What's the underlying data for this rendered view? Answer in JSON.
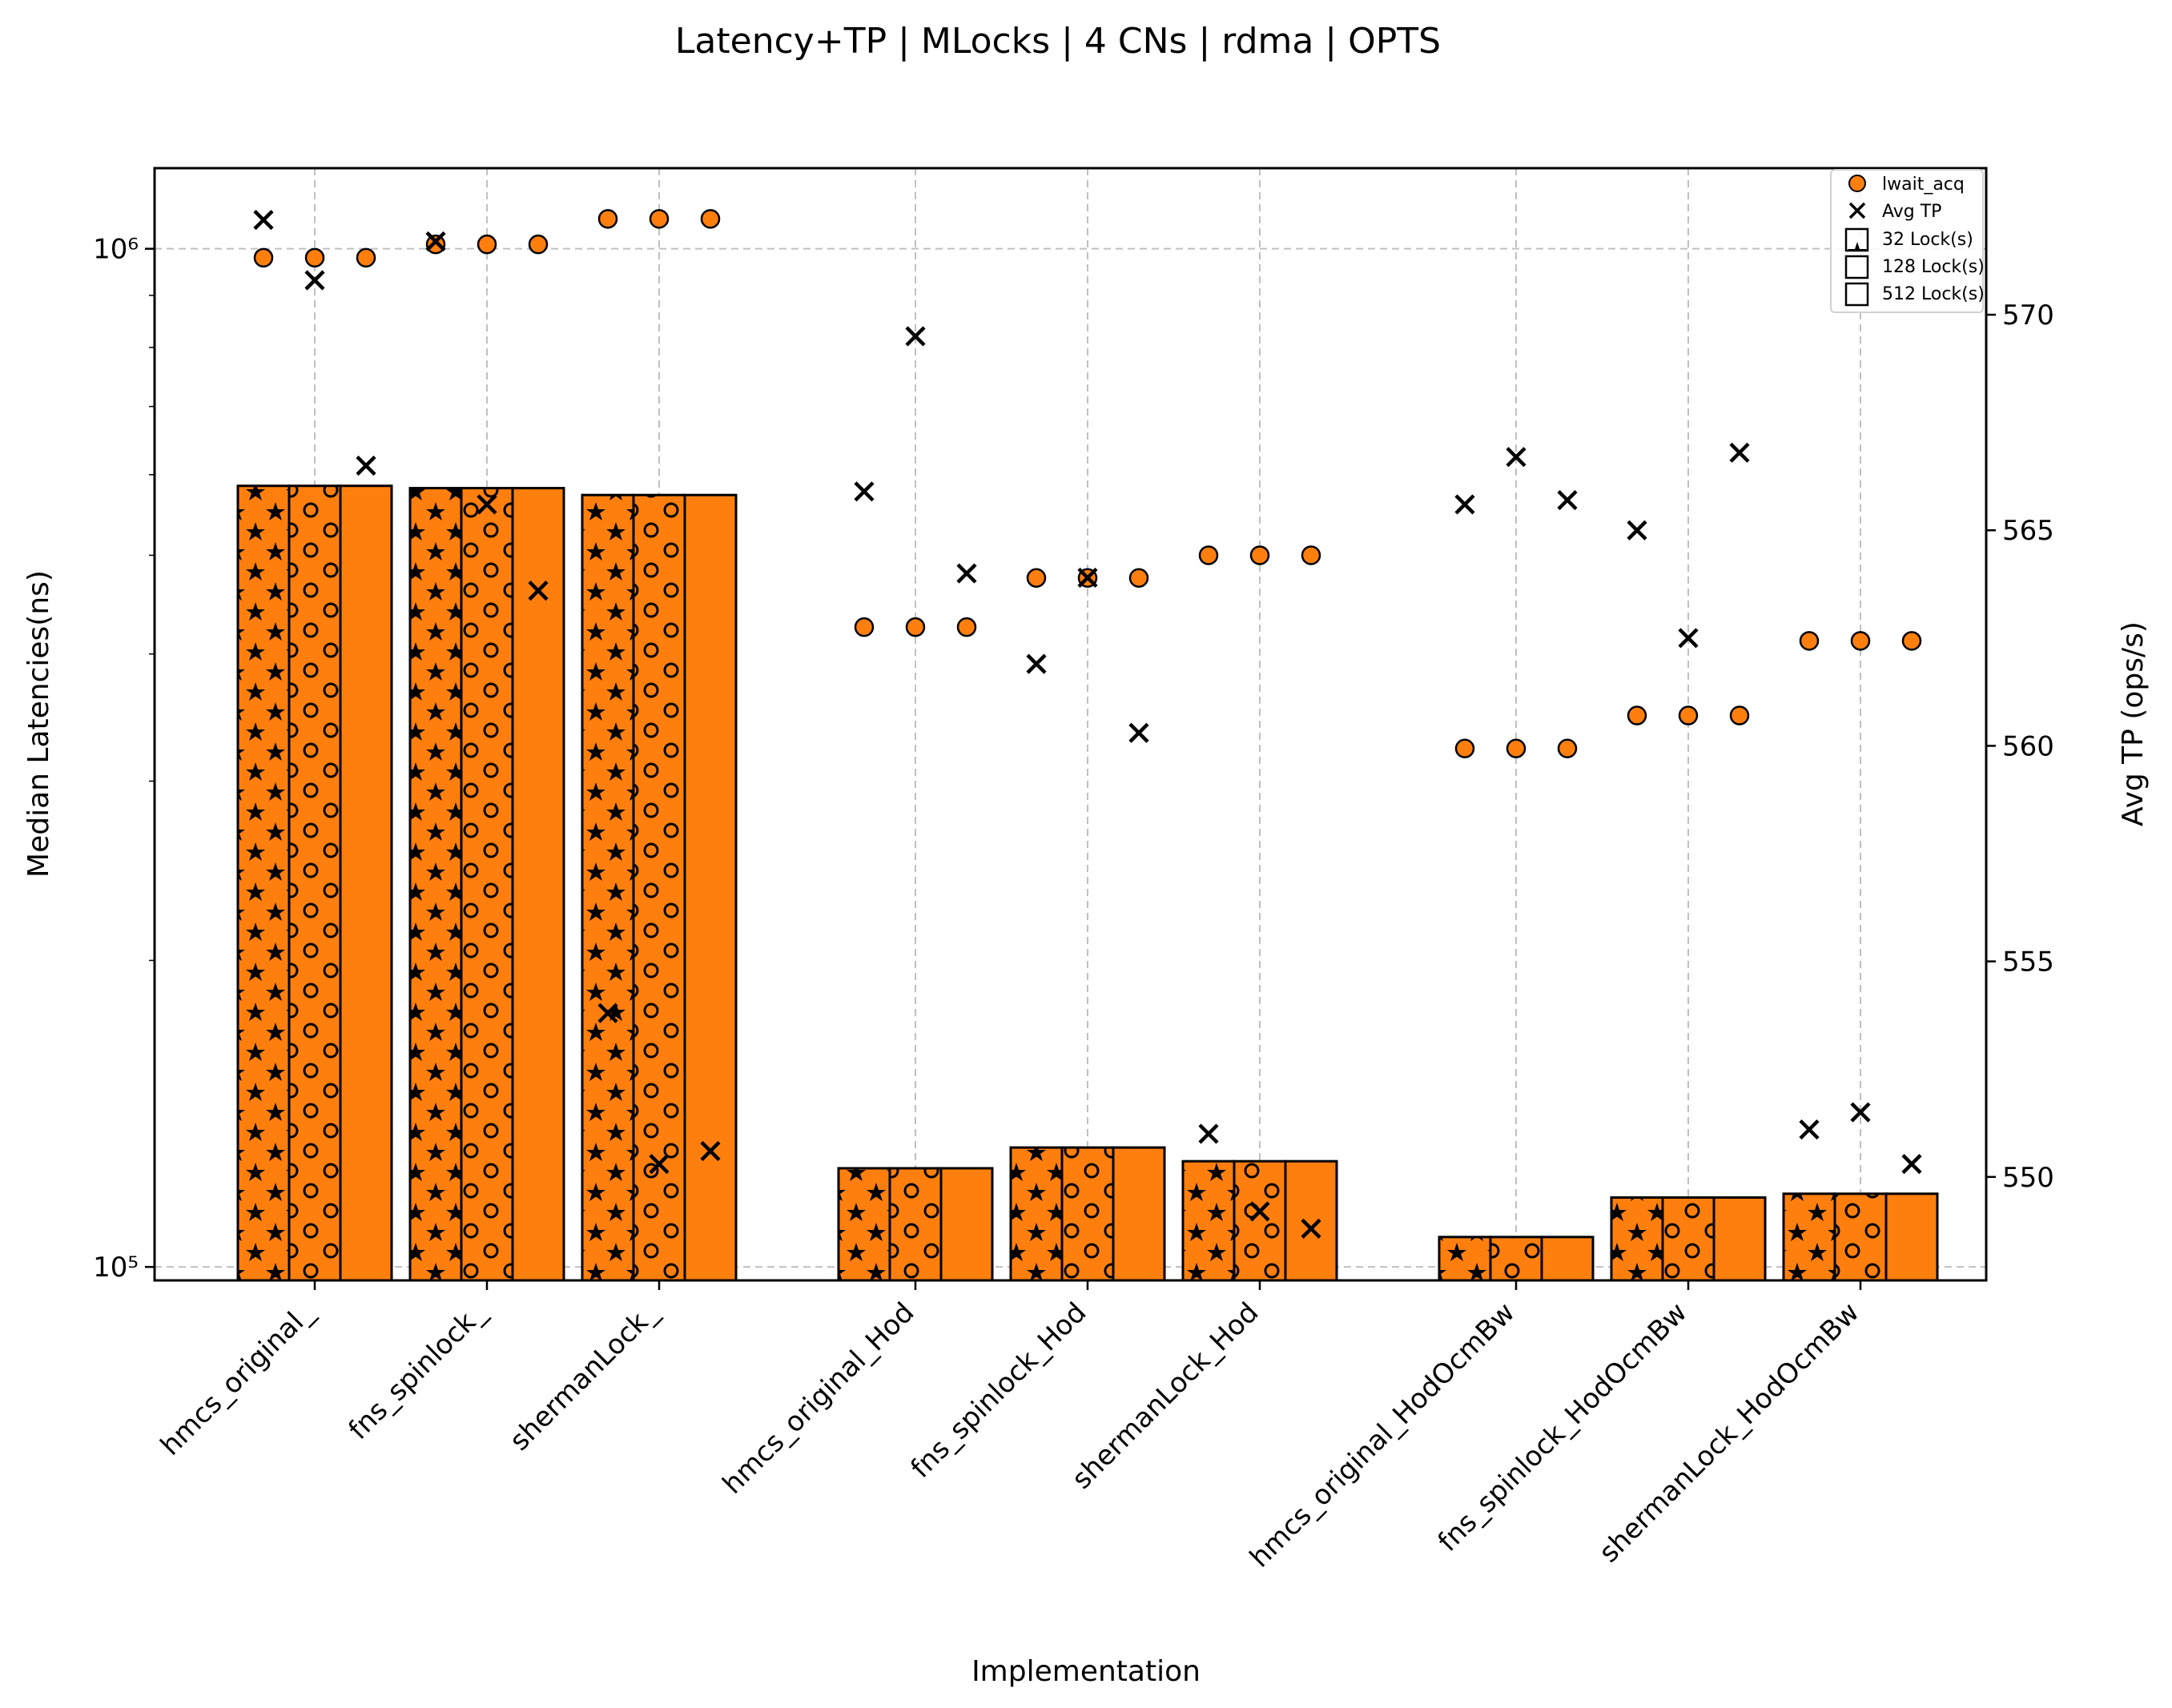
{
  "chart_data": {
    "type": "bar",
    "title": "Latency+TP | MLocks | 4 CNs | rdma | OPTS",
    "xlabel": "Implementation",
    "ylabel": "Median Latencies(ns)",
    "y2label": "Avg TP (ops/s)",
    "yscale": "log",
    "ylim": [
      97000,
      1200000
    ],
    "y2lim": [
      547.6,
      573.4
    ],
    "grid": true,
    "legend_position": "top-right",
    "categories": [
      "hmcs_original_",
      "fns_spinlock_",
      "shermanLock_",
      "hmcs_original_Hod",
      "fns_spinlock_Hod",
      "shermanLock_Hod",
      "hmcs_original_HodOcmBw",
      "fns_spinlock_HodOcmBw",
      "shermanLock_HodOcmBw"
    ],
    "y_ticks": [
      {
        "value": 100000,
        "label": "10⁵"
      },
      {
        "value": 1000000,
        "label": "10⁶"
      }
    ],
    "y2_ticks": [
      550,
      555,
      560,
      565,
      570
    ],
    "series": [
      {
        "name": "32 Lock(s)",
        "hatch": "star",
        "values": [
          585000,
          582000,
          573000,
          125000,
          131000,
          127000,
          107000,
          117000,
          118000
        ]
      },
      {
        "name": "128 Lock(s)",
        "hatch": "circle",
        "values": [
          585000,
          582000,
          573000,
          125000,
          131000,
          127000,
          107000,
          117000,
          118000
        ]
      },
      {
        "name": "512 Lock(s)",
        "hatch": "none",
        "values": [
          585000,
          582000,
          573000,
          125000,
          131000,
          127000,
          107000,
          117000,
          118000
        ]
      }
    ],
    "lwait_acq": {
      "name": "lwait_acq",
      "values": [
        [
          980000,
          980000,
          980000
        ],
        [
          1010000,
          1010000,
          1010000
        ],
        [
          1070000,
          1070000,
          1070000
        ],
        [
          425000,
          425000,
          425000
        ],
        [
          475000,
          475000,
          475000
        ],
        [
          500000,
          500000,
          500000
        ],
        [
          323000,
          323000,
          323000
        ],
        [
          348000,
          348000,
          348000
        ],
        [
          412000,
          412000,
          412000
        ]
      ]
    },
    "avg_tp": {
      "name": "Avg TP",
      "values": [
        [
          572.2,
          570.8,
          566.5
        ],
        [
          571.7,
          565.6,
          563.6
        ],
        [
          553.8,
          550.3,
          550.6
        ],
        [
          565.9,
          569.5,
          564.0
        ],
        [
          561.9,
          563.9,
          560.3
        ],
        [
          551.0,
          549.2,
          548.8
        ],
        [
          565.6,
          566.7,
          565.7
        ],
        [
          565.0,
          562.5,
          566.8
        ],
        [
          551.1,
          551.5,
          550.3
        ]
      ]
    },
    "colors": {
      "bar_fill": "#ff7f0e",
      "bar_edge": "#000000",
      "marker_fill": "#ff7f0e",
      "grid": "#b0b0b0"
    }
  }
}
